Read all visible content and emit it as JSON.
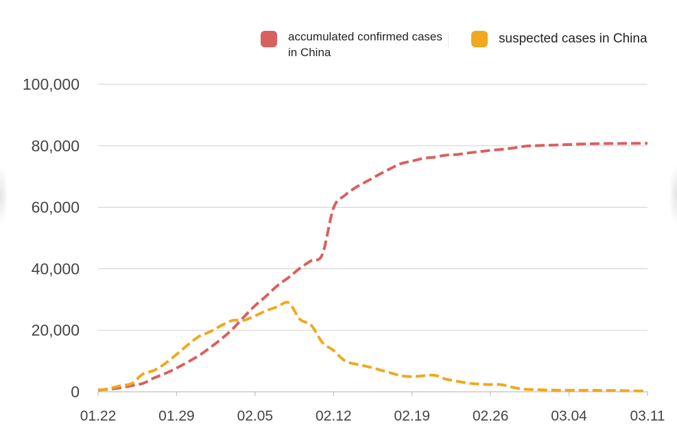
{
  "chart_data": {
    "type": "line",
    "title": "",
    "xlabel": "",
    "ylabel": "",
    "ylim": [
      0,
      100000
    ],
    "yticks": [
      0,
      20000,
      40000,
      60000,
      80000,
      100000
    ],
    "ytick_labels": [
      "0",
      "20,000",
      "40,000",
      "60,000",
      "80,000",
      "100,000"
    ],
    "xtick_labels": [
      "01.22",
      "01.29",
      "02.05",
      "02.12",
      "02.19",
      "02.26",
      "03.04",
      "03.11"
    ],
    "x_start": "01.22",
    "x_end": "03.11",
    "grid": true,
    "legend_position": "top-right",
    "line_style": "dashed",
    "series": [
      {
        "name": "accumulated confirmed cases in China",
        "color": "#d9605f",
        "points": [
          [
            "01.22",
            571
          ],
          [
            "01.23",
            830
          ],
          [
            "01.24",
            1287
          ],
          [
            "01.25",
            1975
          ],
          [
            "01.26",
            2744
          ],
          [
            "01.27",
            4515
          ],
          [
            "01.28",
            5974
          ],
          [
            "01.29",
            7711
          ],
          [
            "01.30",
            9692
          ],
          [
            "01.31",
            11791
          ],
          [
            "02.01",
            14380
          ],
          [
            "02.02",
            17205
          ],
          [
            "02.03",
            20438
          ],
          [
            "02.04",
            24324
          ],
          [
            "02.05",
            28018
          ],
          [
            "02.06",
            31161
          ],
          [
            "02.07",
            34546
          ],
          [
            "02.08",
            37198
          ],
          [
            "02.09",
            40171
          ],
          [
            "02.10",
            42638
          ],
          [
            "02.11",
            44653
          ],
          [
            "02.12",
            59804
          ],
          [
            "02.13",
            63851
          ],
          [
            "02.14",
            66492
          ],
          [
            "02.15",
            68500
          ],
          [
            "02.16",
            70548
          ],
          [
            "02.17",
            72436
          ],
          [
            "02.18",
            74185
          ],
          [
            "02.19",
            75002
          ],
          [
            "02.20",
            75891
          ],
          [
            "02.21",
            76288
          ],
          [
            "02.22",
            76936
          ],
          [
            "02.23",
            77150
          ],
          [
            "02.24",
            77658
          ],
          [
            "02.25",
            78064
          ],
          [
            "02.26",
            78497
          ],
          [
            "02.27",
            78824
          ],
          [
            "02.28",
            79251
          ],
          [
            "02.29",
            79824
          ],
          [
            "03.01",
            80026
          ],
          [
            "03.02",
            80151
          ],
          [
            "03.03",
            80270
          ],
          [
            "03.04",
            80409
          ],
          [
            "03.05",
            80552
          ],
          [
            "03.06",
            80651
          ],
          [
            "03.07",
            80695
          ],
          [
            "03.08",
            80735
          ],
          [
            "03.09",
            80754
          ],
          [
            "03.10",
            80778
          ],
          [
            "03.11",
            80793
          ]
        ]
      },
      {
        "name": "suspected cases in China",
        "color": "#f0a81f",
        "points": [
          [
            "01.22",
            393
          ],
          [
            "01.23",
            1072
          ],
          [
            "01.24",
            1965
          ],
          [
            "01.25",
            2684
          ],
          [
            "01.26",
            5794
          ],
          [
            "01.27",
            6973
          ],
          [
            "01.28",
            9239
          ],
          [
            "01.29",
            12167
          ],
          [
            "01.30",
            15238
          ],
          [
            "01.31",
            17988
          ],
          [
            "02.01",
            19544
          ],
          [
            "02.02",
            21558
          ],
          [
            "02.03",
            23214
          ],
          [
            "02.04",
            23260
          ],
          [
            "02.05",
            24702
          ],
          [
            "02.06",
            26359
          ],
          [
            "02.07",
            27657
          ],
          [
            "02.08",
            28942
          ],
          [
            "02.09",
            23589
          ],
          [
            "02.10",
            21675
          ],
          [
            "02.11",
            16067
          ],
          [
            "02.12",
            13435
          ],
          [
            "02.13",
            10109
          ],
          [
            "02.14",
            8969
          ],
          [
            "02.15",
            8228
          ],
          [
            "02.16",
            7264
          ],
          [
            "02.17",
            6242
          ],
          [
            "02.18",
            5248
          ],
          [
            "02.19",
            4922
          ],
          [
            "02.20",
            5206
          ],
          [
            "02.21",
            5365
          ],
          [
            "02.22",
            4148
          ],
          [
            "02.23",
            3434
          ],
          [
            "02.24",
            2824
          ],
          [
            "02.25",
            2491
          ],
          [
            "02.26",
            2358
          ],
          [
            "02.27",
            2308
          ],
          [
            "02.28",
            1418
          ],
          [
            "02.29",
            851
          ],
          [
            "03.01",
            715
          ],
          [
            "03.02",
            587
          ],
          [
            "03.03",
            520
          ],
          [
            "03.04",
            522
          ],
          [
            "03.05",
            482
          ],
          [
            "03.06",
            502
          ],
          [
            "03.07",
            458
          ],
          [
            "03.08",
            421
          ],
          [
            "03.09",
            349
          ],
          [
            "03.10",
            285
          ],
          [
            "03.11",
            253
          ]
        ]
      }
    ]
  }
}
